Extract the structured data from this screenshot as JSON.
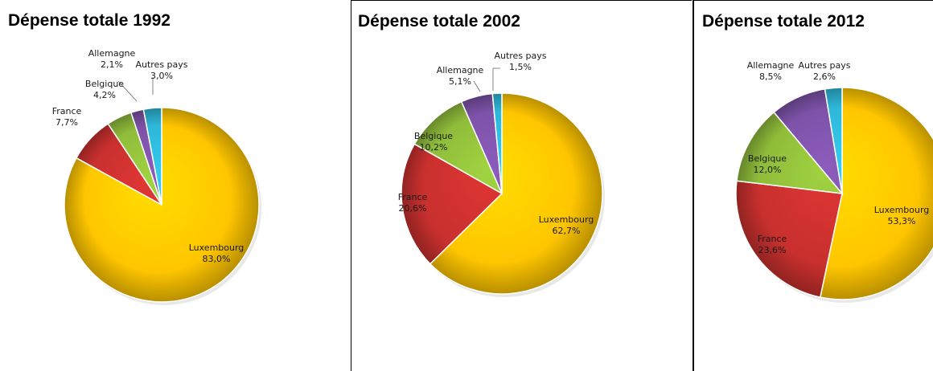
{
  "colors": {
    "Luxembourg": "#ffc600",
    "France": "#c8302e",
    "Belgique": "#8fbc3a",
    "Allemagne": "#7d52a8",
    "Autres pays": "#2eb7d8"
  },
  "chart_data": [
    {
      "type": "pie",
      "title": "Dépense totale 1992",
      "slices": [
        {
          "name": "Luxembourg",
          "value": 83.0,
          "label": "83,0%"
        },
        {
          "name": "France",
          "value": 7.7,
          "label": "7,7%"
        },
        {
          "name": "Belgique",
          "value": 4.2,
          "label": "4,2%"
        },
        {
          "name": "Allemagne",
          "value": 2.1,
          "label": "2,1%"
        },
        {
          "name": "Autres pays",
          "value": 3.0,
          "label": "3,0%"
        }
      ]
    },
    {
      "type": "pie",
      "title": "Dépense totale 2002",
      "slices": [
        {
          "name": "Luxembourg",
          "value": 62.7,
          "label": "62,7%"
        },
        {
          "name": "France",
          "value": 20.6,
          "label": "20,6%"
        },
        {
          "name": "Belgique",
          "value": 10.2,
          "label": "10,2%"
        },
        {
          "name": "Allemagne",
          "value": 5.1,
          "label": "5,1%"
        },
        {
          "name": "Autres pays",
          "value": 1.5,
          "label": "1,5%"
        }
      ]
    },
    {
      "type": "pie",
      "title": "Dépense totale 2012",
      "slices": [
        {
          "name": "Luxembourg",
          "value": 53.3,
          "label": "53,3%"
        },
        {
          "name": "France",
          "value": 23.6,
          "label": "23,6%"
        },
        {
          "name": "Belgique",
          "value": 12.0,
          "label": "12,0%"
        },
        {
          "name": "Allemagne",
          "value": 8.5,
          "label": "8,5%"
        },
        {
          "name": "Autres pays",
          "value": 2.6,
          "label": "2,6%"
        }
      ]
    }
  ]
}
